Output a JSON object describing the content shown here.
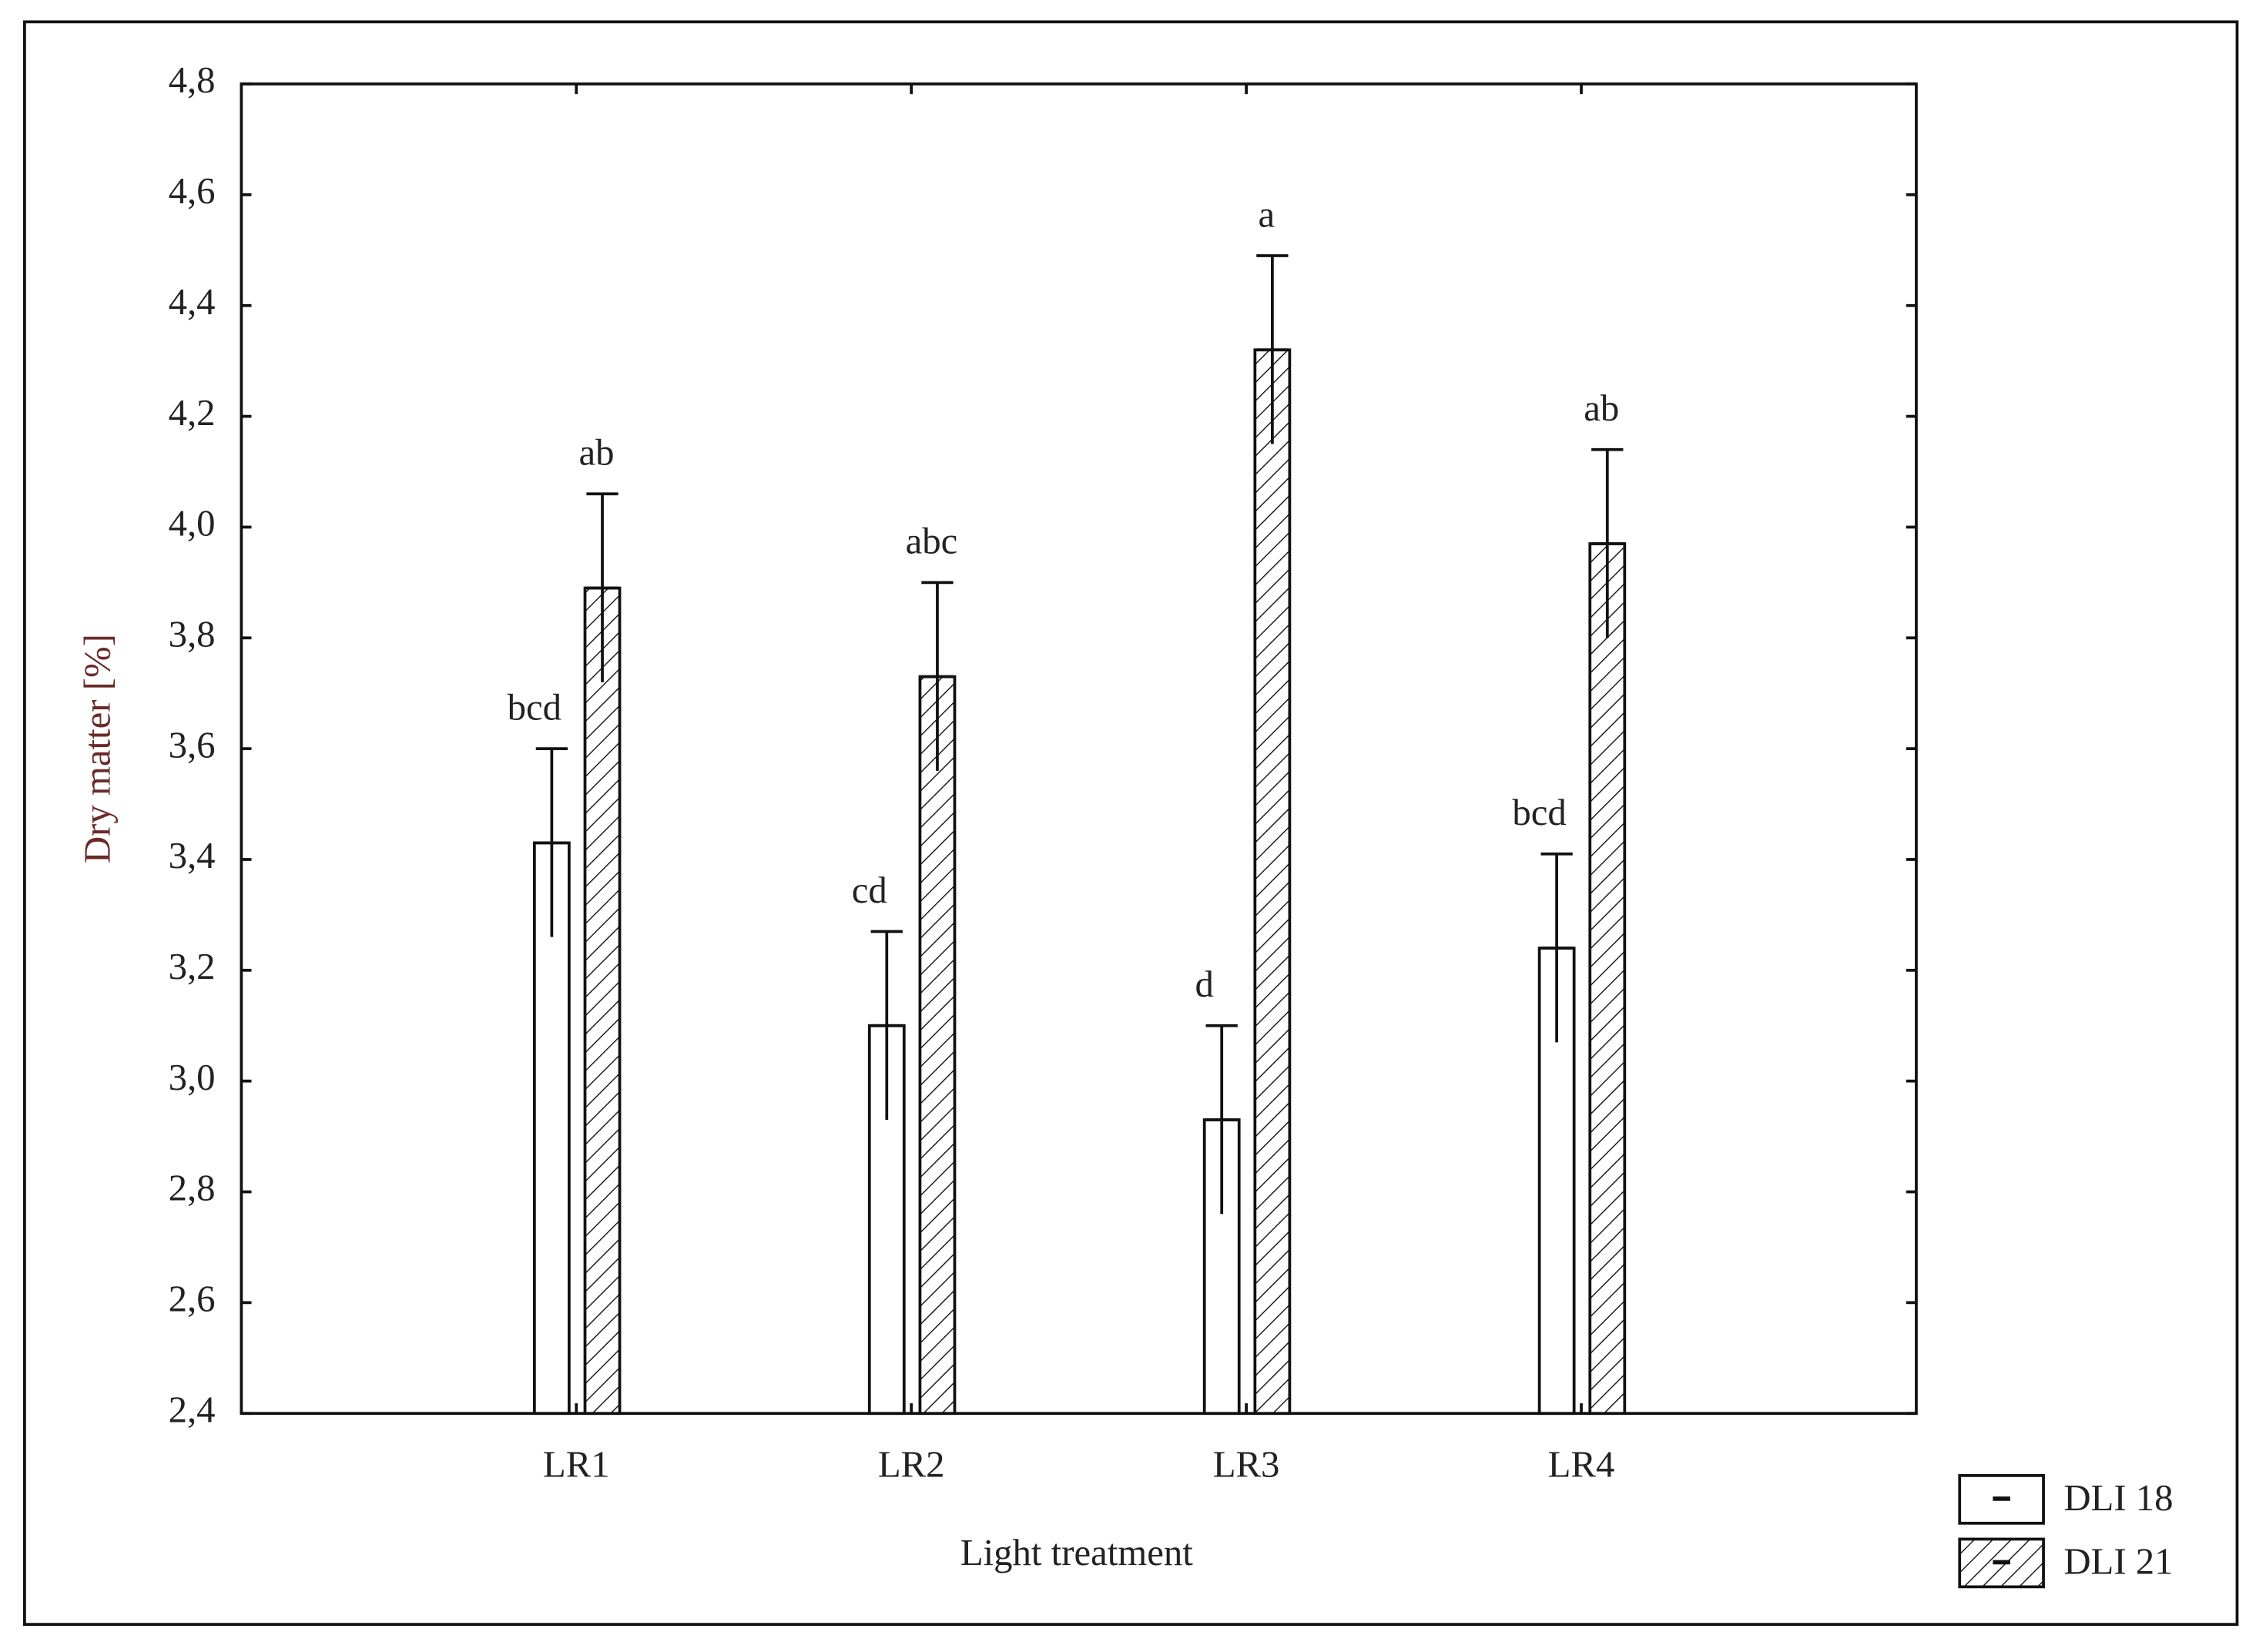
{
  "chart_data": {
    "type": "bar",
    "x_label": "Light treatment",
    "y_label": "Dry matter [%]",
    "categories": [
      "LR1",
      "LR2",
      "LR3",
      "LR4"
    ],
    "series": [
      {
        "name": "DLI 18",
        "color": "#ffffff",
        "hatch": false,
        "values": [
          3.43,
          3.1,
          2.93,
          3.24
        ],
        "errors": [
          0.17,
          0.17,
          0.17,
          0.17
        ],
        "letters": [
          "bcd",
          "cd",
          "d",
          "bcd"
        ]
      },
      {
        "name": "DLI 21",
        "color": "#ffffff",
        "hatch": true,
        "values": [
          3.89,
          3.73,
          4.32,
          3.97
        ],
        "errors": [
          0.17,
          0.17,
          0.17,
          0.17
        ],
        "letters": [
          "ab",
          "abc",
          "a",
          "ab"
        ]
      }
    ],
    "ylim": [
      2.4,
      4.8
    ],
    "yticks": [
      {
        "value": 2.4,
        "label": "2,4"
      },
      {
        "value": 2.6,
        "label": "2,6"
      },
      {
        "value": 2.8,
        "label": "2,8"
      },
      {
        "value": 3.0,
        "label": "3,0"
      },
      {
        "value": 3.2,
        "label": "3,2"
      },
      {
        "value": 3.4,
        "label": "3,4"
      },
      {
        "value": 3.6,
        "label": "3,6"
      },
      {
        "value": 3.8,
        "label": "3,8"
      },
      {
        "value": 4.0,
        "label": "4,0"
      },
      {
        "value": 4.2,
        "label": "4,2"
      },
      {
        "value": 4.4,
        "label": "4,4"
      },
      {
        "value": 4.6,
        "label": "4,6"
      },
      {
        "value": 4.8,
        "label": "4,8"
      }
    ],
    "grid": false,
    "legend": "lower right"
  }
}
